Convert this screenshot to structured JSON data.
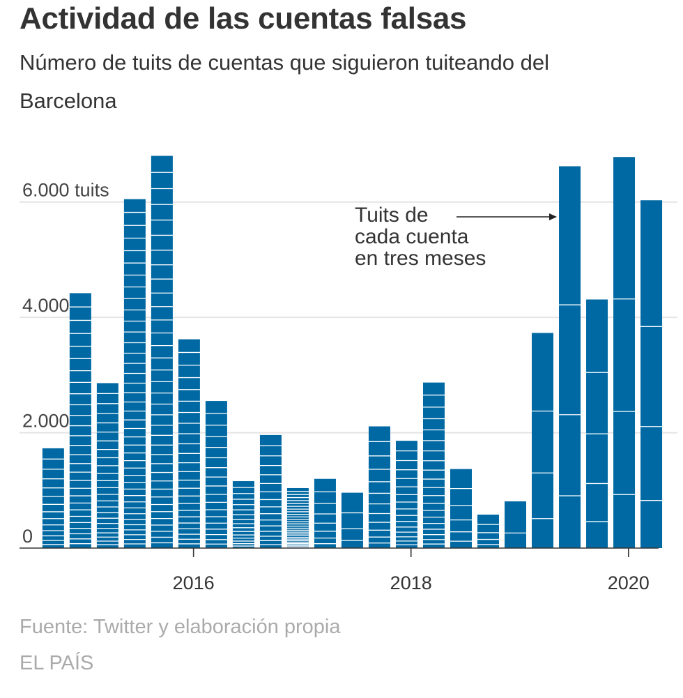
{
  "header": {
    "title": "Actividad de las cuentas falsas",
    "subtitle": "Número de tuits de cuentas que siguieron tuiteando del Barcelona"
  },
  "footer": {
    "source": "Fuente: Twitter y elaboración propia",
    "brand": "EL PAÍS"
  },
  "colors": {
    "bar": "#0069a3",
    "divider": "#ffffff",
    "grid": "#e4e4e4"
  },
  "chart_data": {
    "type": "bar",
    "stacked": true,
    "title": "Actividad de las cuentas falsas",
    "subtitle": "Número de tuits de cuentas que siguieron tuiteando del Barcelona",
    "xlabel": "",
    "ylabel": "",
    "ylim": [
      0,
      7000
    ],
    "xlim": [
      2014.4,
      2020.45
    ],
    "y_ticks": [
      {
        "value": 0,
        "label": "0"
      },
      {
        "value": 2000,
        "label": "2.000"
      },
      {
        "value": 4000,
        "label": "4.000"
      },
      {
        "value": 6000,
        "label": "6.000 tuits"
      }
    ],
    "x_ticks": [
      {
        "value": 2016,
        "label": "2016"
      },
      {
        "value": 2018,
        "label": "2018"
      },
      {
        "value": 2020,
        "label": "2020"
      }
    ],
    "grid": true,
    "bar_period": "quarter",
    "bars": [
      {
        "x": 2014.71,
        "total": 1730,
        "stack_count": 14
      },
      {
        "x": 2014.96,
        "total": 4420,
        "stack_count": 28
      },
      {
        "x": 2015.21,
        "total": 2860,
        "stack_count": 24
      },
      {
        "x": 2015.46,
        "total": 6050,
        "stack_count": 40
      },
      {
        "x": 2015.71,
        "total": 6800,
        "stack_count": 36
      },
      {
        "x": 2015.96,
        "total": 3620,
        "stack_count": 24
      },
      {
        "x": 2016.21,
        "total": 2550,
        "stack_count": 18
      },
      {
        "x": 2016.46,
        "total": 1160,
        "stack_count": 16
      },
      {
        "x": 2016.71,
        "total": 1960,
        "stack_count": 16
      },
      {
        "x": 2016.96,
        "total": 1040,
        "stack_count": 28
      },
      {
        "x": 2017.21,
        "total": 1200,
        "stack_count": 8
      },
      {
        "x": 2017.46,
        "total": 960,
        "stack_count": 4
      },
      {
        "x": 2017.71,
        "total": 2110,
        "stack_count": 12
      },
      {
        "x": 2017.96,
        "total": 1860,
        "stack_count": 16
      },
      {
        "x": 2018.21,
        "total": 2870,
        "stack_count": 20
      },
      {
        "x": 2018.46,
        "total": 1370,
        "stack_count": 6
      },
      {
        "x": 2018.71,
        "total": 580,
        "stack_count": 5
      },
      {
        "x": 2018.96,
        "total": 810,
        "stack_count": 2
      },
      {
        "x": 2019.21,
        "total": 3730,
        "stack_count": 4
      },
      {
        "x": 2019.46,
        "total": 6620,
        "stack_count": 4
      },
      {
        "x": 2019.71,
        "total": 4310,
        "stack_count": 5
      },
      {
        "x": 2019.96,
        "total": 6780,
        "stack_count": 4
      },
      {
        "x": 2020.21,
        "total": 6030,
        "stack_count": 4
      }
    ],
    "annotation": {
      "lines": [
        "Tuits de",
        "cada cuenta",
        "en tres meses"
      ],
      "arrow_to_x": 2019.46,
      "arrow_at_y": 5700
    }
  }
}
